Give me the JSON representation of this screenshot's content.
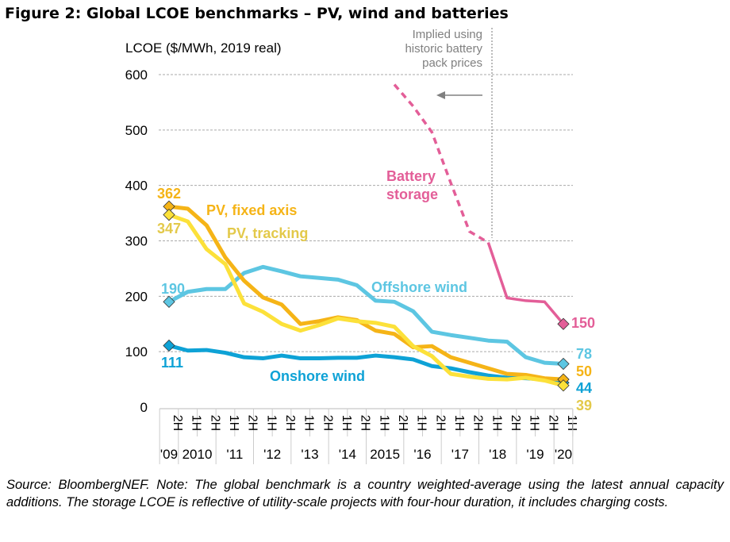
{
  "title": "Figure 2: Global LCOE benchmarks – PV, wind and batteries",
  "source": "Source: BloombergNEF. Note: The global benchmark is a country weighted-average using the latest annual capacity additions. The storage LCOE is reflective of utility-scale projects with four-hour duration, it includes charging costs.",
  "chart_data": {
    "type": "line",
    "ylabel": "LCOE ($/MWh,  2019 real)",
    "ylim": [
      0,
      600
    ],
    "yticks": [
      0,
      100,
      200,
      300,
      400,
      500,
      600
    ],
    "grid": true,
    "categories": [
      "2H",
      "1H",
      "2H",
      "1H",
      "2H",
      "1H",
      "2H",
      "1H",
      "2H",
      "1H",
      "2H",
      "1H",
      "2H",
      "1H",
      "2H",
      "1H",
      "2H",
      "1H",
      "2H",
      "1H",
      "2H",
      "1H"
    ],
    "years": [
      {
        "label": "'09",
        "span": [
          0,
          0
        ]
      },
      {
        "label": "2010",
        "span": [
          1,
          2
        ]
      },
      {
        "label": "'11",
        "span": [
          3,
          4
        ]
      },
      {
        "label": "'12",
        "span": [
          5,
          6
        ]
      },
      {
        "label": "'13",
        "span": [
          7,
          8
        ]
      },
      {
        "label": "'14",
        "span": [
          9,
          10
        ]
      },
      {
        "label": "2015",
        "span": [
          11,
          12
        ]
      },
      {
        "label": "'16",
        "span": [
          13,
          14
        ]
      },
      {
        "label": "'17",
        "span": [
          15,
          16
        ]
      },
      {
        "label": "'18",
        "span": [
          17,
          18
        ]
      },
      {
        "label": "'19",
        "span": [
          19,
          20
        ]
      },
      {
        "label": "'20",
        "span": [
          21,
          21
        ]
      }
    ],
    "series": [
      {
        "name": "Offshore wind",
        "color": "#5DC6E2",
        "start_label": "190",
        "end_label": "78",
        "values": [
          190,
          208,
          213,
          213,
          242,
          253,
          245,
          236,
          233,
          230,
          220,
          192,
          190,
          173,
          136,
          130,
          125,
          120,
          118,
          90,
          80,
          78
        ]
      },
      {
        "name": "Onshore wind",
        "color": "#0EA2D6",
        "start_label": "111",
        "end_label": "44",
        "values": [
          111,
          102,
          103,
          98,
          90,
          88,
          93,
          88,
          88,
          89,
          89,
          93,
          90,
          86,
          74,
          70,
          63,
          57,
          53,
          52,
          50,
          44
        ]
      },
      {
        "name": "PV, fixed axis",
        "color": "#F5B417",
        "start_label": "362",
        "end_label": "50",
        "values": [
          362,
          358,
          328,
          270,
          228,
          198,
          185,
          150,
          155,
          162,
          157,
          138,
          132,
          108,
          110,
          90,
          80,
          70,
          60,
          58,
          52,
          50
        ]
      },
      {
        "name": "PV, tracking",
        "color": "#FCE13A",
        "label_color": "#E3C94A",
        "start_label": "347",
        "end_label": "39",
        "values": [
          347,
          335,
          285,
          258,
          187,
          172,
          150,
          138,
          148,
          160,
          155,
          152,
          145,
          110,
          92,
          60,
          55,
          51,
          50,
          53,
          48,
          39
        ]
      },
      {
        "name": "Battery storage",
        "color": "#E35E98",
        "end_label": "150",
        "values": [
          null,
          null,
          null,
          null,
          null,
          null,
          null,
          null,
          null,
          null,
          null,
          null,
          582,
          543,
          496,
          405,
          317,
          297,
          197,
          192,
          190,
          150
        ],
        "dashed_until_index": 17
      }
    ],
    "annotation": "Implied using historic battery pack prices"
  }
}
